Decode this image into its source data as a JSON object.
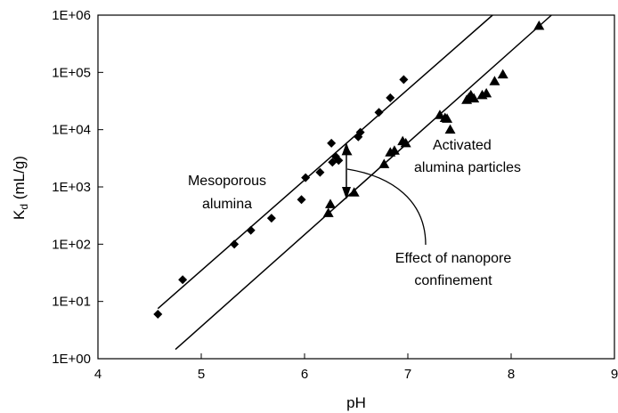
{
  "chart_data": {
    "type": "scatter",
    "xlabel": "pH",
    "ylabel": "K",
    "ylabel_sub": "d",
    "ylabel_unit": " (mL/g)",
    "xlim": [
      4,
      9
    ],
    "ylim": [
      1,
      1000000
    ],
    "yscale": "log",
    "grid": false,
    "x_ticks": [
      "4",
      "5",
      "6",
      "7",
      "8",
      "9"
    ],
    "y_ticks": [
      "1E+00",
      "1E+01",
      "1E+02",
      "1E+03",
      "1E+04",
      "1E+05",
      "1E+06"
    ],
    "series": [
      {
        "name": "Mesoporous alumina",
        "marker": "diamond",
        "points": [
          [
            4.58,
            6
          ],
          [
            4.82,
            24
          ],
          [
            5.32,
            100
          ],
          [
            5.48,
            175
          ],
          [
            5.68,
            285
          ],
          [
            5.97,
            600
          ],
          [
            6.01,
            1450
          ],
          [
            6.15,
            1800
          ],
          [
            6.26,
            5800
          ],
          [
            6.27,
            2700
          ],
          [
            6.3,
            3400
          ],
          [
            6.33,
            2900
          ],
          [
            6.52,
            7500
          ],
          [
            6.54,
            9000
          ],
          [
            6.72,
            20000
          ],
          [
            6.83,
            36000
          ],
          [
            6.96,
            75000
          ]
        ],
        "fit_line": [
          [
            4.58,
            7.5
          ],
          [
            7.82,
            1000000
          ]
        ]
      },
      {
        "name": "Activated alumina particles",
        "marker": "triangle",
        "points": [
          [
            6.23,
            350
          ],
          [
            6.25,
            500
          ],
          [
            6.41,
            4200
          ],
          [
            6.48,
            800
          ],
          [
            6.77,
            2500
          ],
          [
            6.83,
            4000
          ],
          [
            6.87,
            4300
          ],
          [
            6.95,
            6300
          ],
          [
            6.98,
            5800
          ],
          [
            7.31,
            18000
          ],
          [
            7.36,
            16000
          ],
          [
            7.38,
            15500
          ],
          [
            7.41,
            10000
          ],
          [
            7.57,
            33000
          ],
          [
            7.59,
            36000
          ],
          [
            7.61,
            40000
          ],
          [
            7.64,
            35000
          ],
          [
            7.72,
            40000
          ],
          [
            7.76,
            43000
          ],
          [
            7.84,
            70000
          ],
          [
            7.92,
            92000
          ],
          [
            8.27,
            650000
          ]
        ],
        "fit_line": [
          [
            4.75,
            1.45
          ],
          [
            8.39,
            1000000
          ]
        ]
      }
    ],
    "annotations": {
      "mesoporous_line1": "Mesoporous",
      "mesoporous_line2": "alumina",
      "activated_line1": "Activated",
      "activated_line2": "alumina particles",
      "effect_line1": "Effect of nanopore",
      "effect_line2": "confinement"
    }
  }
}
